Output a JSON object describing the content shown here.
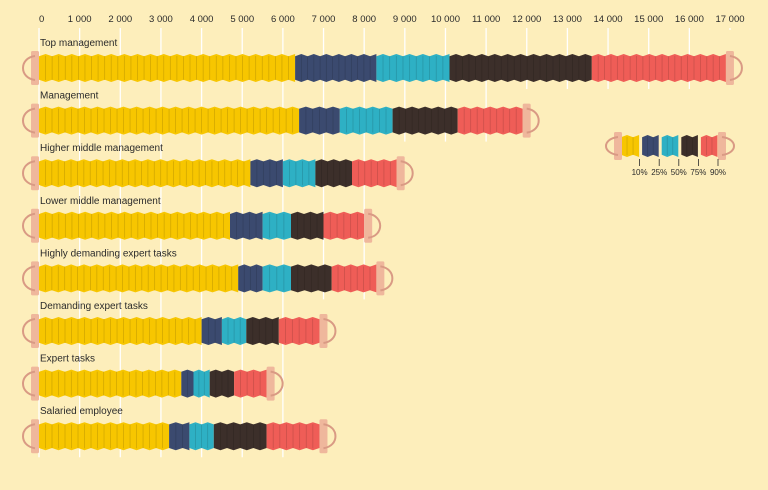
{
  "colors": {
    "background": "#fdeebb",
    "gridline": "#ffffff",
    "handle": "#efb79c",
    "handle_curve": "#d99a84",
    "yellow": "#f7c600",
    "navy": "#3b4a6f",
    "teal": "#2eb0c4",
    "dark": "#3c2f2a",
    "coral": "#ef5d57",
    "text": "#2b2b2b"
  },
  "chart_data": {
    "type": "bar",
    "subtype": "stacked-range (percentile accordion)",
    "x_ticks": [
      0,
      1000,
      2000,
      3000,
      4000,
      5000,
      6000,
      7000,
      8000,
      9000,
      10000,
      11000,
      12000,
      13000,
      14000,
      15000,
      16000,
      17000
    ],
    "x_tick_labels": [
      "0",
      "1 000",
      "2 000",
      "3 000",
      "4 000",
      "5 000",
      "6 000",
      "7 000",
      "8 000",
      "9 000",
      "10 000",
      "11 000",
      "12 000",
      "13 000",
      "14 000",
      "15 000",
      "16 000",
      "17 000"
    ],
    "xlim": [
      0,
      17000
    ],
    "categories": [
      "Top management",
      "Management",
      "Higher middle management",
      "Lower middle management",
      "Highly demanding expert tasks",
      "Demanding expert tasks",
      "Expert tasks",
      "Salaried employee"
    ],
    "segment_names": [
      "10%",
      "25%",
      "50%",
      "75%",
      "90%"
    ],
    "values": [
      [
        6300,
        8300,
        10100,
        13600,
        16900
      ],
      [
        6400,
        7400,
        8700,
        10300,
        11900
      ],
      [
        5200,
        6000,
        6800,
        7700,
        8800
      ],
      [
        4700,
        5500,
        6200,
        7000,
        8000
      ],
      [
        4900,
        5500,
        6200,
        7200,
        8300
      ],
      [
        4000,
        4500,
        5100,
        5900,
        6900
      ],
      [
        3500,
        3800,
        4200,
        4800,
        5600
      ],
      [
        3200,
        3700,
        4300,
        5600,
        6900
      ]
    ],
    "grid": true,
    "legend": {
      "placement": "right",
      "labels": [
        "10%",
        "25%",
        "50%",
        "75%",
        "90%"
      ]
    }
  }
}
